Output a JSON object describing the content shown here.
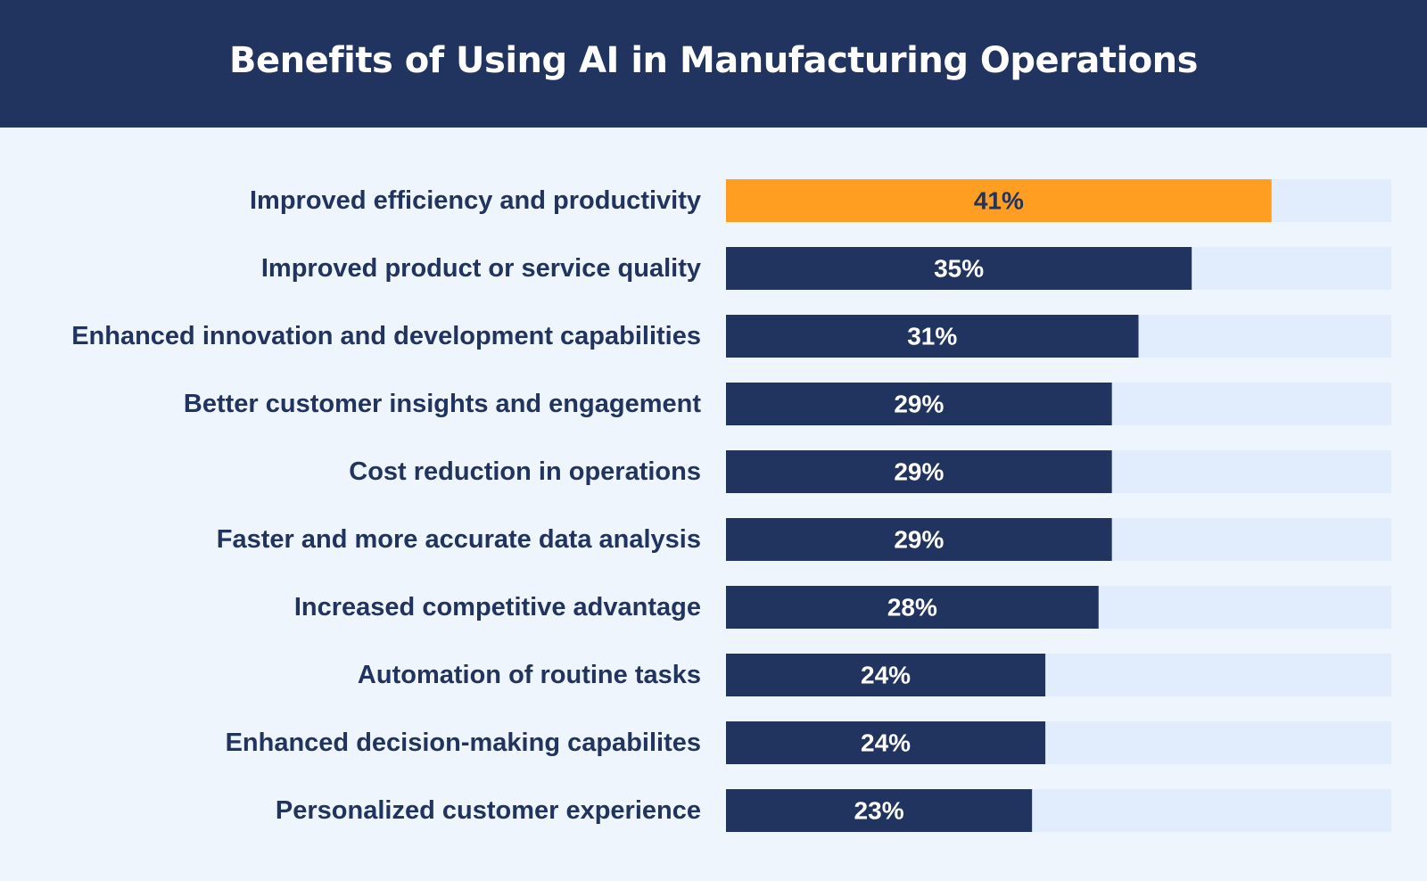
{
  "header": {
    "title": "Benefits of Using AI in Manufacturing Operations"
  },
  "colors": {
    "header_bg": "#21335f",
    "page_bg": "#eef5fd",
    "track": "#e1edfc",
    "bar": "#21335f",
    "highlight": "#ff9e21",
    "label_text": "#21335f",
    "value_text_on_dark": "#ffffff",
    "value_text_on_highlight": "#21335f"
  },
  "chart_data": {
    "type": "bar",
    "orientation": "horizontal",
    "title": "Benefits of Using AI in Manufacturing Operations",
    "categories": [
      "Improved efficiency and productivity",
      "Improved product or service quality",
      "Enhanced innovation and development capabilities",
      "Better customer insights and engagement",
      "Cost reduction in operations",
      "Faster and more accurate data analysis",
      "Increased competitive advantage",
      "Automation of routine tasks",
      "Enhanced decision-making capabilites",
      "Personalized customer experience"
    ],
    "values": [
      41,
      35,
      31,
      29,
      29,
      29,
      28,
      24,
      24,
      23
    ],
    "value_labels": [
      "41%",
      "35%",
      "31%",
      "29%",
      "29%",
      "29%",
      "28%",
      "24%",
      "24%",
      "23%"
    ],
    "highlight_index": 0,
    "xlim": [
      0,
      50
    ],
    "grid": false,
    "legend": "none"
  }
}
